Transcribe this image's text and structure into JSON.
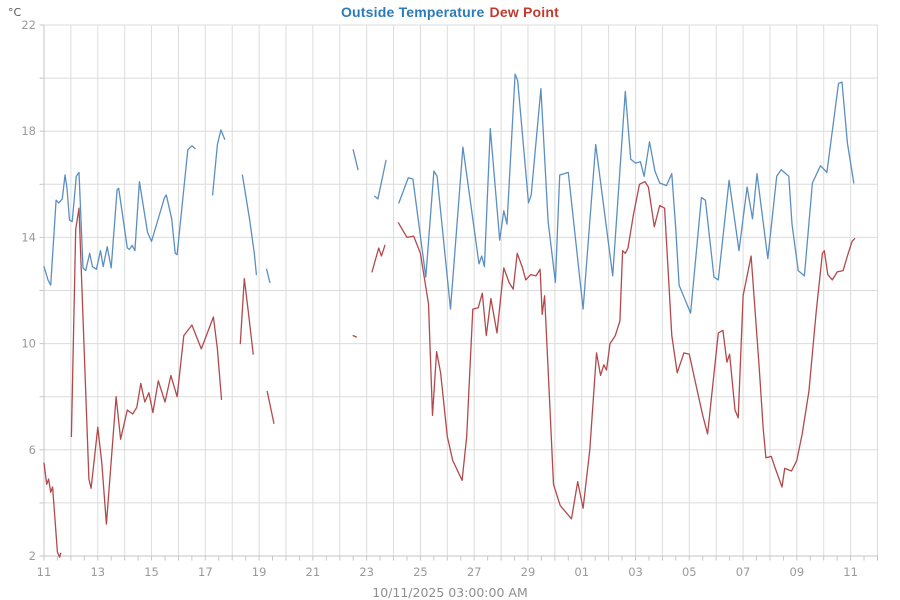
{
  "header": {
    "unit": "°C",
    "title_temperature": "Outside Temperature",
    "title_dewpoint": "Dew Point"
  },
  "footer": {
    "date_label": "10/11/2025 03:00:00 AM"
  },
  "colors": {
    "temperature_line": "#5b8fc2",
    "dewpoint_line": "#b2494b",
    "title_temperature": "#2c7bb8",
    "title_dewpoint": "#c03a2e",
    "grid": "#dcdcdc",
    "axis": "#c6c6c6",
    "tick_label": "#9a9a9a",
    "date_label": "#8f8f8f",
    "unit_label": "#555555"
  },
  "chart_data": {
    "type": "line",
    "title": "Outside Temperature Dew Point",
    "ylabel": "°C",
    "xlabel": "10/11/2025 03:00:00 AM",
    "ylim": [
      2,
      22
    ],
    "y_major_tick_labels": [
      2,
      6,
      10,
      14,
      18,
      22
    ],
    "y_grid_step": 2,
    "grid": true,
    "legend_position": "title-top-center",
    "x_unit": "day-of-month, one month span ending 10/11/2025",
    "x_ticks": [
      {
        "d": 0,
        "label": "11"
      },
      {
        "d": 2,
        "label": "13"
      },
      {
        "d": 4,
        "label": "15"
      },
      {
        "d": 6,
        "label": "17"
      },
      {
        "d": 8,
        "label": "19"
      },
      {
        "d": 10,
        "label": "21"
      },
      {
        "d": 12,
        "label": "23"
      },
      {
        "d": 14,
        "label": "25"
      },
      {
        "d": 16,
        "label": "27"
      },
      {
        "d": 18,
        "label": "29"
      },
      {
        "d": 20,
        "label": "01"
      },
      {
        "d": 22,
        "label": "03"
      },
      {
        "d": 24,
        "label": "05"
      },
      {
        "d": 26,
        "label": "07"
      },
      {
        "d": 28,
        "label": "09"
      },
      {
        "d": 30,
        "label": "11"
      }
    ],
    "x_grid_days": 31,
    "series": [
      {
        "name": "Outside Temperature",
        "color": "#5b8fc2",
        "segments": [
          [
            [
              0,
              12.9
            ],
            [
              0.15,
              12.4
            ],
            [
              0.25,
              12.2
            ],
            [
              0.45,
              15.4
            ],
            [
              0.55,
              15.3
            ],
            [
              0.68,
              15.45
            ],
            [
              0.78,
              16.35
            ],
            [
              0.85,
              15.9
            ],
            [
              0.95,
              14.65
            ],
            [
              1.05,
              14.6
            ],
            [
              1.2,
              16.3
            ],
            [
              1.3,
              16.45
            ],
            [
              1.45,
              12.85
            ],
            [
              1.55,
              12.75
            ],
            [
              1.7,
              13.4
            ],
            [
              1.8,
              12.9
            ],
            [
              1.95,
              12.8
            ],
            [
              2.1,
              13.5
            ],
            [
              2.2,
              12.9
            ],
            [
              2.35,
              13.65
            ],
            [
              2.5,
              12.85
            ],
            [
              2.72,
              15.8
            ],
            [
              2.78,
              15.85
            ],
            [
              3.1,
              13.6
            ],
            [
              3.18,
              13.55
            ],
            [
              3.28,
              13.7
            ],
            [
              3.38,
              13.5
            ],
            [
              3.55,
              16.1
            ],
            [
              3.85,
              14.2
            ],
            [
              4.0,
              13.85
            ],
            [
              4.35,
              15.05
            ],
            [
              4.48,
              15.5
            ],
            [
              4.55,
              15.6
            ],
            [
              4.75,
              14.7
            ],
            [
              4.88,
              13.4
            ],
            [
              4.95,
              13.35
            ],
            [
              5.35,
              17.3
            ],
            [
              5.5,
              17.45
            ],
            [
              5.62,
              17.35
            ]
          ],
          [
            [
              6.27,
              15.6
            ],
            [
              6.45,
              17.5
            ],
            [
              6.58,
              18.05
            ],
            [
              6.72,
              17.7
            ]
          ],
          [
            [
              7.38,
              16.35
            ],
            [
              7.65,
              14.65
            ],
            [
              7.82,
              13.4
            ],
            [
              7.9,
              12.6
            ]
          ],
          [
            [
              8.28,
              12.8
            ],
            [
              8.4,
              12.3
            ]
          ],
          [
            [
              11.5,
              17.3
            ],
            [
              11.68,
              16.55
            ]
          ],
          [
            [
              12.3,
              15.55
            ],
            [
              12.42,
              15.45
            ],
            [
              12.72,
              16.9
            ]
          ],
          [
            [
              13.2,
              15.3
            ],
            [
              13.55,
              16.25
            ],
            [
              13.72,
              16.2
            ],
            [
              14.2,
              12.5
            ],
            [
              14.5,
              16.5
            ],
            [
              14.62,
              16.3
            ],
            [
              15.12,
              11.3
            ],
            [
              15.58,
              17.4
            ],
            [
              16.18,
              13.0
            ],
            [
              16.28,
              13.3
            ],
            [
              16.38,
              12.9
            ],
            [
              16.6,
              18.1
            ],
            [
              16.95,
              13.9
            ],
            [
              17.1,
              15.0
            ],
            [
              17.22,
              14.5
            ],
            [
              17.52,
              20.15
            ],
            [
              17.62,
              19.9
            ],
            [
              18.02,
              15.3
            ],
            [
              18.12,
              15.6
            ],
            [
              18.48,
              19.6
            ],
            [
              18.75,
              14.6
            ],
            [
              19.02,
              12.3
            ],
            [
              19.18,
              16.35
            ],
            [
              19.5,
              16.45
            ],
            [
              20.05,
              11.3
            ],
            [
              20.52,
              17.5
            ],
            [
              21.15,
              12.55
            ],
            [
              21.62,
              19.5
            ],
            [
              21.82,
              16.95
            ],
            [
              22.0,
              16.8
            ],
            [
              22.18,
              16.85
            ],
            [
              22.32,
              16.3
            ],
            [
              22.52,
              17.6
            ],
            [
              22.72,
              16.5
            ],
            [
              22.9,
              16.05
            ],
            [
              23.15,
              15.95
            ],
            [
              23.35,
              16.4
            ],
            [
              23.5,
              14.3
            ],
            [
              23.62,
              12.2
            ],
            [
              24.05,
              11.15
            ],
            [
              24.45,
              15.5
            ],
            [
              24.6,
              15.4
            ],
            [
              24.92,
              12.5
            ],
            [
              25.08,
              12.4
            ],
            [
              25.48,
              16.15
            ],
            [
              25.85,
              13.5
            ],
            [
              26.15,
              15.9
            ],
            [
              26.35,
              14.7
            ],
            [
              26.52,
              16.4
            ],
            [
              26.92,
              13.2
            ],
            [
              27.25,
              16.3
            ],
            [
              27.42,
              16.55
            ],
            [
              27.7,
              16.3
            ],
            [
              27.82,
              14.5
            ],
            [
              28.05,
              12.75
            ],
            [
              28.28,
              12.55
            ],
            [
              28.58,
              16.05
            ],
            [
              28.88,
              16.7
            ],
            [
              29.12,
              16.45
            ],
            [
              29.55,
              19.8
            ],
            [
              29.68,
              19.85
            ],
            [
              29.88,
              17.55
            ],
            [
              30.12,
              16.05
            ]
          ]
        ]
      },
      {
        "name": "Dew Point",
        "color": "#b2494b",
        "segments": [
          [
            [
              0,
              5.5
            ],
            [
              0.1,
              4.7
            ],
            [
              0.17,
              4.9
            ],
            [
              0.25,
              4.4
            ],
            [
              0.32,
              4.6
            ],
            [
              0.5,
              2.15
            ],
            [
              0.58,
              1.95
            ],
            [
              0.62,
              2.1
            ]
          ],
          [
            [
              1.02,
              6.5
            ],
            [
              1.18,
              14.3
            ],
            [
              1.3,
              15.1
            ],
            [
              1.67,
              4.9
            ],
            [
              1.75,
              4.55
            ],
            [
              2.0,
              6.85
            ],
            [
              2.15,
              5.5
            ],
            [
              2.32,
              3.2
            ],
            [
              2.68,
              8.0
            ],
            [
              2.85,
              6.4
            ],
            [
              3.1,
              7.5
            ],
            [
              3.3,
              7.35
            ],
            [
              3.45,
              7.6
            ],
            [
              3.6,
              8.5
            ],
            [
              3.75,
              7.8
            ],
            [
              3.9,
              8.15
            ],
            [
              4.05,
              7.4
            ],
            [
              4.25,
              8.6
            ],
            [
              4.5,
              7.8
            ],
            [
              4.72,
              8.8
            ],
            [
              4.95,
              8.0
            ],
            [
              5.2,
              10.3
            ],
            [
              5.5,
              10.7
            ],
            [
              5.85,
              9.8
            ],
            [
              6.3,
              11.0
            ],
            [
              6.45,
              9.8
            ],
            [
              6.6,
              7.9
            ]
          ],
          [
            [
              7.3,
              10.0
            ],
            [
              7.45,
              12.45
            ],
            [
              7.6,
              11.2
            ],
            [
              7.78,
              9.6
            ]
          ],
          [
            [
              8.3,
              8.2
            ],
            [
              8.55,
              7.0
            ]
          ],
          [
            [
              11.5,
              10.3
            ],
            [
              11.62,
              10.25
            ]
          ],
          [
            [
              12.2,
              12.7
            ],
            [
              12.45,
              13.6
            ],
            [
              12.55,
              13.3
            ],
            [
              12.68,
              13.7
            ]
          ],
          [
            [
              13.18,
              14.55
            ],
            [
              13.5,
              14.0
            ],
            [
              13.75,
              14.05
            ],
            [
              14.0,
              13.4
            ],
            [
              14.3,
              11.5
            ],
            [
              14.45,
              7.3
            ],
            [
              14.6,
              9.7
            ],
            [
              14.75,
              8.9
            ],
            [
              15.0,
              6.5
            ],
            [
              15.2,
              5.6
            ],
            [
              15.55,
              4.85
            ],
            [
              15.72,
              6.5
            ],
            [
              15.95,
              11.3
            ],
            [
              16.15,
              11.35
            ],
            [
              16.3,
              11.9
            ],
            [
              16.45,
              10.3
            ],
            [
              16.62,
              11.7
            ],
            [
              16.85,
              10.4
            ],
            [
              17.1,
              12.85
            ],
            [
              17.3,
              12.3
            ],
            [
              17.45,
              12.05
            ],
            [
              17.6,
              13.4
            ],
            [
              17.78,
              12.9
            ],
            [
              17.92,
              12.4
            ],
            [
              18.1,
              12.6
            ],
            [
              18.3,
              12.55
            ],
            [
              18.45,
              12.8
            ],
            [
              18.53,
              11.1
            ],
            [
              18.62,
              11.8
            ],
            [
              18.78,
              8.4
            ],
            [
              18.95,
              4.7
            ],
            [
              19.2,
              3.9
            ],
            [
              19.62,
              3.4
            ],
            [
              19.85,
              4.8
            ],
            [
              20.05,
              3.8
            ],
            [
              20.3,
              6.0
            ],
            [
              20.55,
              9.65
            ],
            [
              20.7,
              8.8
            ],
            [
              20.82,
              9.2
            ],
            [
              20.92,
              9.0
            ],
            [
              21.05,
              10.0
            ],
            [
              21.25,
              10.3
            ],
            [
              21.42,
              10.85
            ],
            [
              21.52,
              13.5
            ],
            [
              21.62,
              13.4
            ],
            [
              21.72,
              13.6
            ],
            [
              21.92,
              14.85
            ],
            [
              22.15,
              16.0
            ],
            [
              22.35,
              16.1
            ],
            [
              22.48,
              15.9
            ],
            [
              22.7,
              14.4
            ],
            [
              22.9,
              15.2
            ],
            [
              23.08,
              15.1
            ],
            [
              23.35,
              10.3
            ],
            [
              23.55,
              8.9
            ],
            [
              23.8,
              9.65
            ],
            [
              24.0,
              9.6
            ],
            [
              24.15,
              8.9
            ],
            [
              24.5,
              7.3
            ],
            [
              24.68,
              6.6
            ],
            [
              25.08,
              10.4
            ],
            [
              25.25,
              10.5
            ],
            [
              25.4,
              9.3
            ],
            [
              25.5,
              9.6
            ],
            [
              25.7,
              7.5
            ],
            [
              25.82,
              7.2
            ],
            [
              26.0,
              11.8
            ],
            [
              26.3,
              13.3
            ],
            [
              26.6,
              9.1
            ],
            [
              26.75,
              6.8
            ],
            [
              26.85,
              5.7
            ],
            [
              27.05,
              5.75
            ],
            [
              27.2,
              5.3
            ],
            [
              27.45,
              4.6
            ],
            [
              27.55,
              5.3
            ],
            [
              27.8,
              5.2
            ],
            [
              28.0,
              5.6
            ],
            [
              28.2,
              6.6
            ],
            [
              28.45,
              8.2
            ],
            [
              28.72,
              11.2
            ],
            [
              28.95,
              13.4
            ],
            [
              29.02,
              13.5
            ],
            [
              29.15,
              12.6
            ],
            [
              29.32,
              12.4
            ],
            [
              29.5,
              12.7
            ],
            [
              29.72,
              12.75
            ],
            [
              29.88,
              13.3
            ],
            [
              30.05,
              13.85
            ],
            [
              30.15,
              13.95
            ]
          ]
        ]
      }
    ]
  }
}
